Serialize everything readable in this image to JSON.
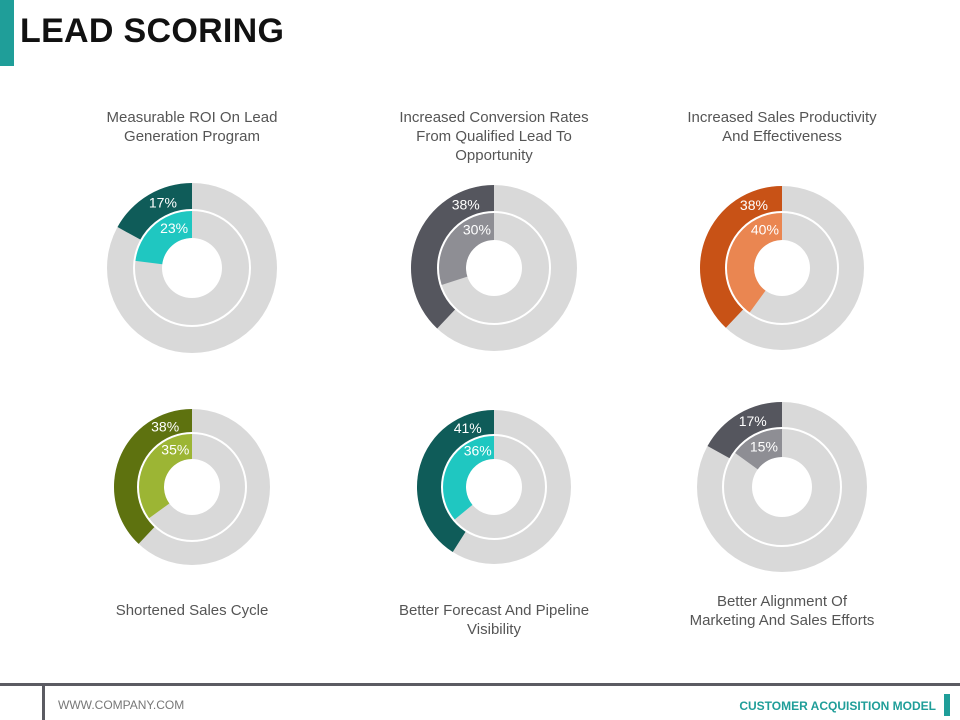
{
  "header": {
    "title": "LEAD SCORING"
  },
  "footer": {
    "website": "WWW.COMPANY.COM",
    "deck_name": "CUSTOMER ACQUISITION MODEL"
  },
  "colors": {
    "accent": "#1f9e99",
    "track": "#d9d9d9"
  },
  "chart_data": [
    {
      "type": "donut",
      "title": "Measurable ROI On Lead Generation Program",
      "series": [
        {
          "name": "outer",
          "value": 17,
          "label": "17%",
          "color": "#0f5c59"
        },
        {
          "name": "inner",
          "value": 23,
          "label": "23%",
          "color": "#1fc7c1"
        }
      ]
    },
    {
      "type": "donut",
      "title": "Increased Conversion Rates From Qualified Lead To Opportunity",
      "series": [
        {
          "name": "outer",
          "value": 38,
          "label": "38%",
          "color": "#55565e"
        },
        {
          "name": "inner",
          "value": 30,
          "label": "30%",
          "color": "#8e8e94"
        }
      ]
    },
    {
      "type": "donut",
      "title": "Increased Sales Productivity And Effectiveness",
      "series": [
        {
          "name": "outer",
          "value": 38,
          "label": "38%",
          "color": "#c85216"
        },
        {
          "name": "inner",
          "value": 40,
          "label": "40%",
          "color": "#ea8651"
        }
      ]
    },
    {
      "type": "donut",
      "title": "Shortened Sales Cycle",
      "series": [
        {
          "name": "outer",
          "value": 38,
          "label": "38%",
          "color": "#5e720f"
        },
        {
          "name": "inner",
          "value": 35,
          "label": "35%",
          "color": "#9cb534"
        }
      ]
    },
    {
      "type": "donut",
      "title": "Better Forecast And Pipeline Visibility",
      "series": [
        {
          "name": "outer",
          "value": 41,
          "label": "41%",
          "color": "#0f5c59"
        },
        {
          "name": "inner",
          "value": 36,
          "label": "36%",
          "color": "#1fc7c1"
        }
      ]
    },
    {
      "type": "donut",
      "title": "Better Alignment Of Marketing And Sales Efforts",
      "series": [
        {
          "name": "outer",
          "value": 17,
          "label": "17%",
          "color": "#55565e"
        },
        {
          "name": "inner",
          "value": 15,
          "label": "15%",
          "color": "#8e8e94"
        }
      ]
    }
  ]
}
